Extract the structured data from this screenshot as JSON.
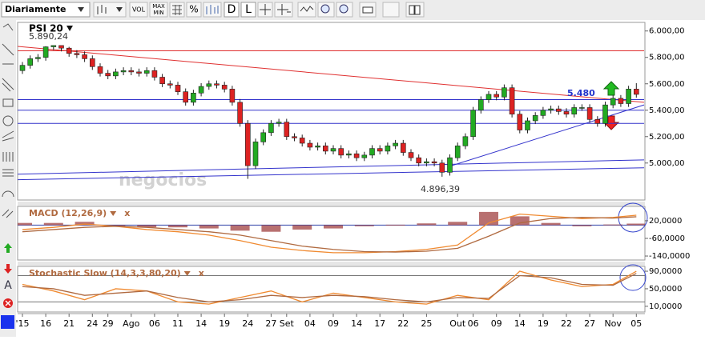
{
  "toolbar": {
    "period": "Diariamente",
    "buttons": [
      "VOL",
      "MAX",
      "MIN",
      "%",
      "D",
      "L"
    ],
    "text_tool": "A"
  },
  "chart_data": {
    "type": "candlestick",
    "title": "PSI 20",
    "close_icon": "x",
    "annotations": [
      {
        "text": "5.890,24",
        "x": 1,
        "y": 5890.24
      },
      {
        "text": "4.896,39",
        "x": 54,
        "y": 4896.39
      },
      {
        "text": "5.480",
        "x": 73,
        "y": 5480
      }
    ],
    "watermark": "negocios",
    "up_color": "#22aa22",
    "down_color": "#dd2222",
    "open": [
      5700,
      5740,
      5790,
      5800,
      5880,
      5890,
      5870,
      5830,
      5820,
      5790,
      5730,
      5680,
      5660,
      5690,
      5700,
      5690,
      5680,
      5700,
      5650,
      5600,
      5590,
      5540,
      5460,
      5530,
      5580,
      5600,
      5590,
      5560,
      5460,
      5300,
      4980,
      5160,
      5230,
      5300,
      5310,
      5200,
      5190,
      5150,
      5120,
      5130,
      5090,
      5110,
      5060,
      5070,
      5040,
      5060,
      5110,
      5090,
      5130,
      5150,
      5080,
      5040,
      5000,
      5010,
      5000,
      4930,
      5040,
      5130,
      5200,
      5400,
      5480,
      5520,
      5500,
      5570,
      5370,
      5250,
      5320,
      5360,
      5400,
      5410,
      5390,
      5370,
      5420,
      5420,
      5330,
      5300,
      5440,
      5490,
      5450,
      5560
    ],
    "close": [
      5740,
      5790,
      5800,
      5880,
      5890,
      5870,
      5830,
      5820,
      5790,
      5730,
      5680,
      5660,
      5690,
      5700,
      5690,
      5680,
      5700,
      5650,
      5600,
      5590,
      5540,
      5460,
      5530,
      5580,
      5600,
      5590,
      5560,
      5460,
      5300,
      4980,
      5160,
      5230,
      5300,
      5310,
      5200,
      5190,
      5150,
      5120,
      5130,
      5090,
      5110,
      5060,
      5070,
      5040,
      5060,
      5110,
      5090,
      5130,
      5150,
      5080,
      5040,
      5000,
      5010,
      5000,
      4930,
      5040,
      5130,
      5200,
      5400,
      5480,
      5520,
      5500,
      5570,
      5370,
      5250,
      5320,
      5360,
      5400,
      5410,
      5390,
      5370,
      5420,
      5420,
      5330,
      5300,
      5440,
      5490,
      5450,
      5560,
      5520
    ],
    "high": [
      5765,
      5815,
      5825,
      5885,
      5890.24,
      5885,
      5880,
      5855,
      5845,
      5815,
      5755,
      5705,
      5715,
      5725,
      5725,
      5715,
      5725,
      5725,
      5675,
      5625,
      5615,
      5565,
      5555,
      5605,
      5625,
      5625,
      5615,
      5585,
      5485,
      5325,
      5185,
      5255,
      5325,
      5335,
      5335,
      5225,
      5215,
      5175,
      5155,
      5155,
      5135,
      5135,
      5095,
      5095,
      5085,
      5135,
      5135,
      5155,
      5175,
      5175,
      5105,
      5065,
      5035,
      5035,
      5025,
      5065,
      5155,
      5225,
      5425,
      5505,
      5545,
      5545,
      5595,
      5595,
      5395,
      5345,
      5385,
      5425,
      5435,
      5435,
      5415,
      5445,
      5445,
      5445,
      5355,
      5465,
      5515,
      5515,
      5585,
      5605
    ],
    "low": [
      5675,
      5715,
      5765,
      5775,
      5855,
      5845,
      5805,
      5795,
      5765,
      5705,
      5655,
      5635,
      5635,
      5665,
      5665,
      5655,
      5655,
      5625,
      5575,
      5565,
      5515,
      5435,
      5435,
      5505,
      5555,
      5565,
      5535,
      5435,
      5275,
      4880,
      4955,
      5135,
      5205,
      5275,
      5175,
      5165,
      5125,
      5095,
      5095,
      5065,
      5065,
      5035,
      5035,
      5015,
      5015,
      5035,
      5065,
      5065,
      5105,
      5055,
      5015,
      4975,
      4975,
      4975,
      4896.39,
      4905,
      5015,
      5105,
      5175,
      5375,
      5455,
      5475,
      5475,
      5345,
      5225,
      5225,
      5295,
      5335,
      5375,
      5365,
      5345,
      5345,
      5395,
      5305,
      5275,
      5275,
      5415,
      5425,
      5425,
      5495
    ],
    "lines": [
      {
        "color": "#e03030",
        "x": [
          -1,
          80
        ],
        "y": [
          5885,
          5460
        ]
      },
      {
        "color": "#e03030",
        "x": [
          -1,
          80
        ],
        "y": [
          5850,
          5850
        ]
      },
      {
        "color": "#3333cc",
        "x": [
          -1,
          80
        ],
        "y": [
          5480,
          5480
        ]
      },
      {
        "color": "#3333cc",
        "x": [
          -1,
          80
        ],
        "y": [
          5400,
          5400
        ]
      },
      {
        "color": "#3333cc",
        "x": [
          -1,
          80
        ],
        "y": [
          5300,
          5300
        ]
      },
      {
        "color": "#3333cc",
        "x": [
          -1,
          80
        ],
        "y": [
          4915,
          5024
        ]
      },
      {
        "color": "#3333cc",
        "x": [
          -1,
          80
        ],
        "y": [
          4873,
          4964
        ]
      },
      {
        "color": "#3333cc",
        "x": [
          55,
          80
        ],
        "y": [
          4976,
          5440
        ]
      }
    ],
    "ylim": [
      4720,
      6065
    ],
    "yticks": [
      {
        "value": 6000,
        "label": "6.000,00"
      },
      {
        "value": 5800,
        "label": "5.800,00"
      },
      {
        "value": 5600,
        "label": "5.600,00"
      },
      {
        "value": 5400,
        "label": "5.400,00"
      },
      {
        "value": 5200,
        "label": "5.200,00"
      },
      {
        "value": 5000,
        "label": "5.000,00"
      }
    ],
    "xticks": [
      {
        "value": 0,
        "label": "'15"
      },
      {
        "value": 3,
        "label": "16"
      },
      {
        "value": 6,
        "label": "21"
      },
      {
        "value": 9,
        "label": "24"
      },
      {
        "value": 11,
        "label": "29"
      },
      {
        "value": 14,
        "label": "Ago"
      },
      {
        "value": 17,
        "label": "06"
      },
      {
        "value": 20,
        "label": "11"
      },
      {
        "value": 23,
        "label": "14"
      },
      {
        "value": 26,
        "label": "19"
      },
      {
        "value": 29,
        "label": "24"
      },
      {
        "value": 32,
        "label": "27"
      },
      {
        "value": 34,
        "label": "Set"
      },
      {
        "value": 37,
        "label": "04"
      },
      {
        "value": 40,
        "label": "09"
      },
      {
        "value": 43,
        "label": "14"
      },
      {
        "value": 46,
        "label": "17"
      },
      {
        "value": 49,
        "label": "22"
      },
      {
        "value": 52,
        "label": "25"
      },
      {
        "value": 56,
        "label": "Out"
      },
      {
        "value": 58,
        "label": "06"
      },
      {
        "value": 61,
        "label": "09"
      },
      {
        "value": 64,
        "label": "14"
      },
      {
        "value": 67,
        "label": "19"
      },
      {
        "value": 70,
        "label": "22"
      },
      {
        "value": 73,
        "label": "27"
      },
      {
        "value": 76,
        "label": "Nov"
      },
      {
        "value": 79,
        "label": "05"
      }
    ],
    "indicators": [
      {
        "type": "macd",
        "title": "MACD (12,26,9)",
        "x": [
          0,
          4,
          8,
          12,
          16,
          20,
          24,
          28,
          32,
          36,
          40,
          44,
          48,
          52,
          56,
          60,
          64,
          68,
          72,
          76,
          79
        ],
        "series": [
          {
            "name": "MACD",
            "color": "#f08a30",
            "values": [
              -20,
              -10,
              5,
              -5,
              -20,
              -30,
              -45,
              -70,
              -100,
              -115,
              -125,
              -125,
              -120,
              -110,
              -90,
              10,
              50,
              40,
              30,
              35,
              45
            ]
          },
          {
            "name": "Signal",
            "color": "#b06a40",
            "values": [
              -30,
              -20,
              -10,
              -5,
              -10,
              -20,
              -30,
              -45,
              -70,
              -95,
              -110,
              -120,
              -122,
              -118,
              -105,
              -50,
              10,
              30,
              35,
              32,
              38
            ]
          }
        ],
        "histogram": {
          "color": "#a04040",
          "values": [
            10,
            10,
            15,
            0,
            -10,
            -10,
            -15,
            -25,
            -30,
            -20,
            -15,
            -5,
            2,
            8,
            15,
            60,
            40,
            10,
            -5,
            3,
            7
          ]
        },
        "ylim": [
          -158,
          85
        ],
        "yticks": [
          {
            "value": 20,
            "label": "20,0000"
          },
          {
            "value": -60,
            "label": "-60,0000"
          },
          {
            "value": -140,
            "label": "-140,0000"
          }
        ]
      },
      {
        "type": "stochastic",
        "title": "Stochastic Slow (14,3,3,80,20)",
        "x": [
          0,
          4,
          8,
          12,
          16,
          20,
          24,
          28,
          32,
          36,
          40,
          44,
          48,
          52,
          56,
          60,
          64,
          68,
          72,
          76,
          79
        ],
        "series": [
          {
            "name": "%K",
            "color": "#f08a30",
            "values": [
              60,
              45,
              25,
              50,
              45,
              20,
              15,
              30,
              45,
              20,
              40,
              30,
              20,
              15,
              35,
              25,
              90,
              70,
              55,
              60,
              90
            ]
          },
          {
            "name": "%D",
            "color": "#b06a40",
            "values": [
              55,
              50,
              35,
              40,
              45,
              30,
              20,
              25,
              35,
              30,
              35,
              32,
              25,
              20,
              30,
              28,
              80,
              75,
              60,
              58,
              85
            ]
          }
        ],
        "levels": [
          80,
          20
        ],
        "ylim": [
          -3,
          101
        ],
        "yticks": [
          {
            "value": 90,
            "label": "90,0000"
          },
          {
            "value": 50,
            "label": "50,0000"
          },
          {
            "value": 10,
            "label": "10,0000"
          }
        ]
      }
    ]
  }
}
